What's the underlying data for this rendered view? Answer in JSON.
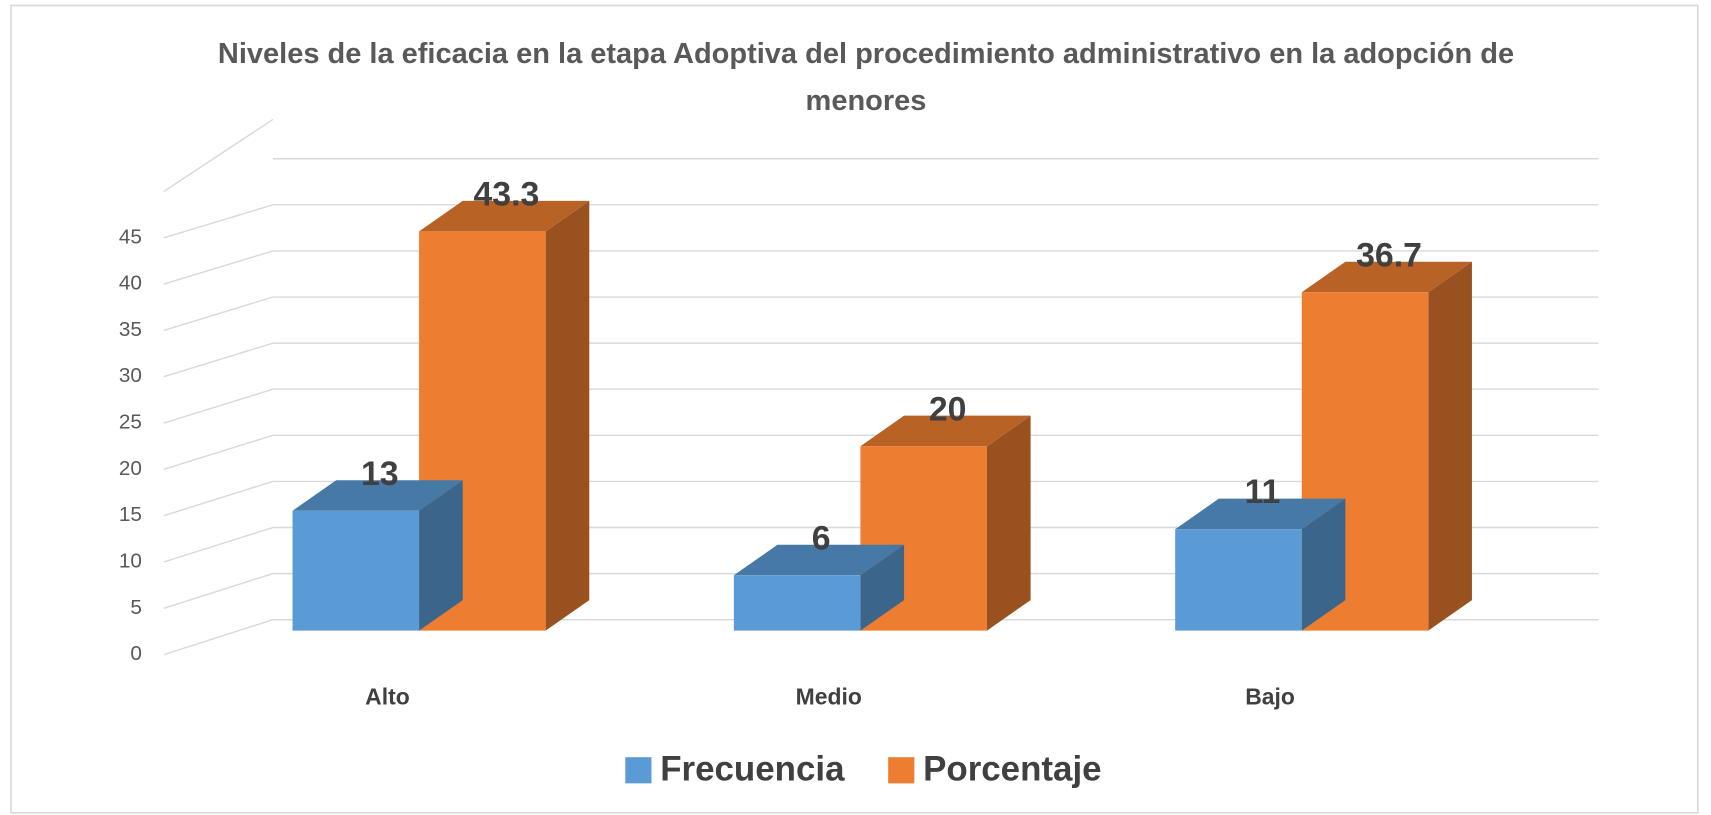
{
  "chart_data": {
    "type": "bar3d",
    "title": "Niveles de la eficacia en la etapa Adoptiva del procedimiento administrativo en la adopción de menores",
    "categories": [
      "Alto",
      "Medio",
      "Bajo"
    ],
    "series": [
      {
        "name": "Frecuencia",
        "color": "#5b9bd5",
        "values": [
          13,
          6,
          11
        ]
      },
      {
        "name": "Porcentaje",
        "color": "#ed7d31",
        "values": [
          43.3,
          20,
          36.7
        ]
      }
    ],
    "ylim": [
      0,
      50
    ],
    "yticks": [
      0,
      5,
      10,
      15,
      20,
      25,
      30,
      35,
      40,
      45
    ],
    "grid": true,
    "legend": "bottom"
  }
}
